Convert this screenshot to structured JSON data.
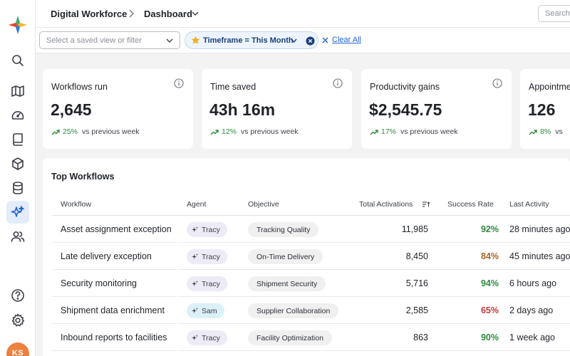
{
  "header": {
    "breadcrumb_root": "Digital Workforce",
    "breadcrumb_current": "Dashboard",
    "search_placeholder": "Search"
  },
  "filters": {
    "view_placeholder": "Select a saved view or filter",
    "active_chip": "Timeframe = This Month",
    "clear_all": "Clear All"
  },
  "nav": {
    "items": [
      "search-icon",
      "map-icon",
      "gauge-icon",
      "book-icon",
      "cube-icon",
      "database-icon",
      "sparkles-icon",
      "users-icon"
    ],
    "active": "sparkles-icon",
    "bottom": [
      "help-icon",
      "gear-icon"
    ],
    "avatar_initials": "KS",
    "avatar_color": "#ee8040"
  },
  "kpis": [
    {
      "title": "Workflows run",
      "value": "2,645",
      "change": "25%",
      "compare": "vs previous week"
    },
    {
      "title": "Time saved",
      "value": "43h 16m",
      "change": "12%",
      "compare": "vs previous week"
    },
    {
      "title": "Productivity gains",
      "value": "$2,545.75",
      "change": "17%",
      "compare": "vs previous week"
    },
    {
      "title": "Appointme",
      "value": "126",
      "change": "8%",
      "compare": "vs"
    }
  ],
  "table": {
    "title": "Top Workflows",
    "columns": [
      "Workflow",
      "Agent",
      "Objective",
      "Total Activations",
      "Success Rate",
      "Last Activity"
    ],
    "rows": [
      {
        "workflow": "Asset assignment exception",
        "agent": "Tracy",
        "objective": "Tracking Quality",
        "activations": "11,985",
        "rate": "92%",
        "rate_color": "#2f8a3e",
        "last": "28 minutes ago"
      },
      {
        "workflow": "Late delivery exception",
        "agent": "Tracy",
        "objective": "On-Time Delivery",
        "activations": "8,450",
        "rate": "84%",
        "rate_color": "#a8652b",
        "last": "45 minutes ago"
      },
      {
        "workflow": "Security monitoring",
        "agent": "Tracy",
        "objective": "Shipment Security",
        "activations": "5,716",
        "rate": "94%",
        "rate_color": "#2f8a3e",
        "last": "6 hours ago"
      },
      {
        "workflow": "Shipment data enrichment",
        "agent": "Sam",
        "objective": "Supplier Collaboration",
        "activations": "2,585",
        "rate": "65%",
        "rate_color": "#c23a3a",
        "last": "2 days ago"
      },
      {
        "workflow": "Inbound reports to facilities",
        "agent": "Tracy",
        "objective": "Facility Optimization",
        "activations": "863",
        "rate": "90%",
        "rate_color": "#2f8a3e",
        "last": "1 week ago"
      }
    ]
  }
}
